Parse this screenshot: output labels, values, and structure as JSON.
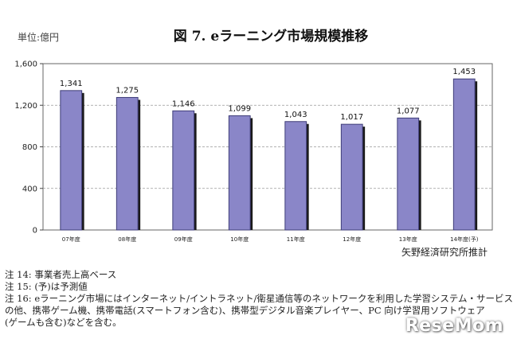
{
  "chart_data": {
    "type": "bar",
    "title": "図 7. eラーニング市場規模推移",
    "unit_label": "単位:億円",
    "categories": [
      "07年度",
      "08年度",
      "09年度",
      "10年度",
      "11年度",
      "12年度",
      "13年度",
      "14年度(予)"
    ],
    "values": [
      1341,
      1275,
      1146,
      1099,
      1043,
      1017,
      1077,
      1453
    ],
    "value_labels": [
      "1,341",
      "1,275",
      "1,146",
      "1,099",
      "1,043",
      "1,017",
      "1,077",
      "1,453"
    ],
    "yticks": [
      0,
      400,
      800,
      1200,
      1600
    ],
    "ytick_labels": [
      "0",
      "400",
      "800",
      "1,200",
      "1,600"
    ],
    "ylim": [
      0,
      1600
    ],
    "grid": true,
    "legend": "none",
    "bar_color": "#8a86c8",
    "bar_edge_color": "#3f3d78"
  },
  "source": "矢野経済研究所推計",
  "notes": [
    "注 14: 事業者売上高ベース",
    "注 15: (予)は予測値",
    "注 16: eラーニング市場にはインターネット/イントラネット/衛星通信等のネットワークを利用した学習システム・サービス",
    "の他、携帯ゲーム機、携帯電話(スマートフォン含む)、携帯型デジタル音楽プレイヤー、PC 向け学習用ソフトウェア",
    "(ゲームも含む)などを含む。"
  ],
  "watermark": "ReseMom"
}
